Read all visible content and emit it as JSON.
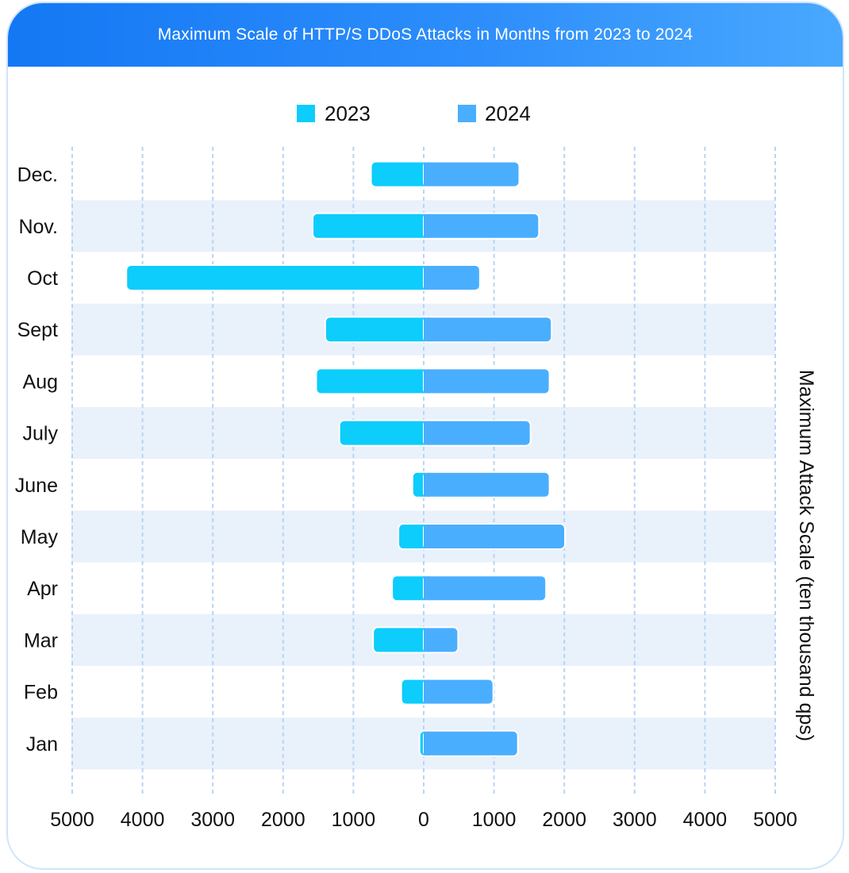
{
  "header": {
    "title": "Maximum Scale of HTTP/S DDoS Attacks in Months from 2023 to 2024"
  },
  "chart_data": {
    "type": "bar",
    "orientation": "horizontal-diverging",
    "title": "Maximum Scale of HTTP/S DDoS Attacks in Months from 2023 to 2024",
    "ylabel": "Maximum Attack Scale (ten thousand qps)",
    "categories": [
      "Dec.",
      "Nov.",
      "Oct",
      "Sept",
      "Aug",
      "July",
      "June",
      "May",
      "Apr",
      "Mar",
      "Feb",
      "Jan"
    ],
    "series": [
      {
        "name": "2023",
        "color": "#0ccdfb",
        "side": "left",
        "values": [
          750,
          1580,
          4230,
          1400,
          1530,
          1200,
          160,
          360,
          450,
          720,
          320,
          60
        ]
      },
      {
        "name": "2024",
        "color": "#4aaefe",
        "side": "right",
        "values": [
          1360,
          1640,
          800,
          1820,
          1790,
          1520,
          1790,
          2010,
          1740,
          490,
          990,
          1340
        ]
      }
    ],
    "xlim": [
      -5000,
      5000
    ],
    "tick_labels": [
      "5000",
      "4000",
      "3000",
      "2000",
      "1000",
      "0",
      "1000",
      "2000",
      "3000",
      "4000",
      "5000"
    ],
    "grid": true,
    "legend_position": "top-center"
  }
}
